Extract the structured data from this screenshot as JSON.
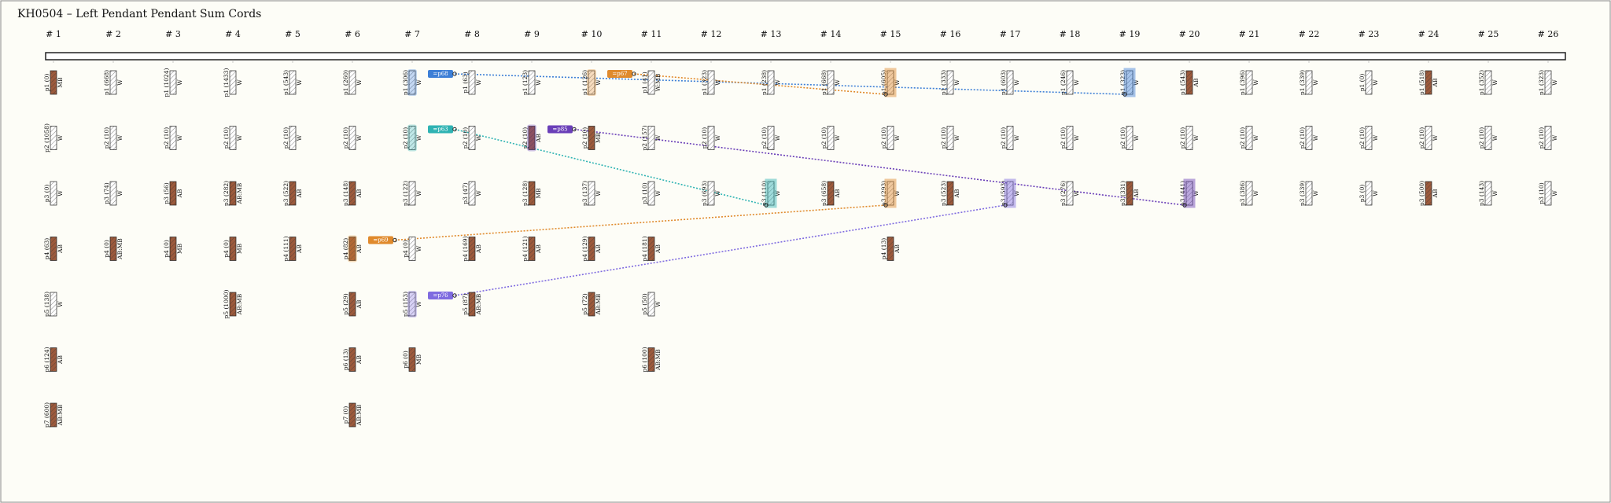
{
  "title": "KH0504 – Left Pendant Pendant Sum Cords",
  "groups": [
    {
      "label": "# 1",
      "cords": [
        {
          "l": "p1 (0)",
          "c": "MB",
          "f": "#9c5a3c"
        },
        {
          "l": "p2 (1058)",
          "c": "W",
          "f": "#ffffff"
        },
        {
          "l": "p3 (0)",
          "c": "W",
          "f": "#ffffff"
        },
        {
          "l": "p4 (63)",
          "c": "AB",
          "f": "#9c5a3c"
        },
        {
          "l": "p5 (138)",
          "c": "W",
          "f": "#ffffff"
        },
        {
          "l": "p6 (124)",
          "c": "AB",
          "f": "#9c5a3c"
        },
        {
          "l": "p7 (600)",
          "c": "AB:MB",
          "f": "#9c5a3c"
        }
      ]
    },
    {
      "label": "# 2",
      "cords": [
        {
          "l": "p1 (668)",
          "c": "W",
          "f": "#ffffff"
        },
        {
          "l": "p2 (10)",
          "c": "W",
          "f": "#ffffff"
        },
        {
          "l": "p3 (74)",
          "c": "W",
          "f": "#ffffff"
        },
        {
          "l": "p4 (0)",
          "c": "AB:MB",
          "f": "#9c5a3c"
        }
      ]
    },
    {
      "label": "# 3",
      "cords": [
        {
          "l": "p1 (1024)",
          "c": "W",
          "f": "#ffffff"
        },
        {
          "l": "p2 (10)",
          "c": "W",
          "f": "#ffffff"
        },
        {
          "l": "p3 (56)",
          "c": "AB",
          "f": "#9c5a3c"
        },
        {
          "l": "p4 (0)",
          "c": "MB",
          "f": "#9c5a3c"
        }
      ]
    },
    {
      "label": "# 4",
      "cords": [
        {
          "l": "p1 (1433)",
          "c": "W",
          "f": "#ffffff"
        },
        {
          "l": "p2 (10)",
          "c": "W",
          "f": "#ffffff"
        },
        {
          "l": "p3 (282)",
          "c": "AB:MB",
          "f": "#9c5a3c"
        },
        {
          "l": "p4 (0)",
          "c": "MB",
          "f": "#9c5a3c"
        },
        {
          "l": "p5 (1000)",
          "c": "AB:MB",
          "f": "#9c5a3c"
        }
      ]
    },
    {
      "label": "# 5",
      "cords": [
        {
          "l": "p1 (543)",
          "c": "W",
          "f": "#ffffff"
        },
        {
          "l": "p2 (10)",
          "c": "W",
          "f": "#ffffff"
        },
        {
          "l": "p3 (522)",
          "c": "AB",
          "f": "#9c5a3c"
        },
        {
          "l": "p4 (111)",
          "c": "AB",
          "f": "#9c5a3c"
        }
      ]
    },
    {
      "label": "# 6",
      "cords": [
        {
          "l": "p1 (260)",
          "c": "W",
          "f": "#ffffff"
        },
        {
          "l": "p2 (10)",
          "c": "W",
          "f": "#ffffff"
        },
        {
          "l": "p3 (148)",
          "c": "AB",
          "f": "#9c5a3c"
        },
        {
          "l": "p4 (82)",
          "c": "AB",
          "f": "#9c5a3c"
        },
        {
          "l": "p5 (29)",
          "c": "AB",
          "f": "#9c5a3c"
        },
        {
          "l": "p6 (13)",
          "c": "AB",
          "f": "#9c5a3c"
        },
        {
          "l": "p7 (0)",
          "c": "AB:MB",
          "f": "#9c5a3c"
        }
      ]
    },
    {
      "label": "# 7",
      "cords": [
        {
          "l": "p1 (306)",
          "c": "W",
          "f": "#ffffff"
        },
        {
          "l": "p2 (10)",
          "c": "W",
          "f": "#ffffff"
        },
        {
          "l": "p3 (122)",
          "c": "W",
          "f": "#ffffff"
        },
        {
          "l": "p4 (0)",
          "c": "W",
          "f": "#ffffff"
        },
        {
          "l": "p5 (153)",
          "c": "W",
          "f": "#ffffff"
        },
        {
          "l": "p6 (0)",
          "c": "MB",
          "f": "#9c5a3c"
        }
      ]
    },
    {
      "label": "# 8",
      "cords": [
        {
          "l": "p1 (63)",
          "c": "W",
          "f": "#ffffff"
        },
        {
          "l": "p2 (10)",
          "c": "W",
          "f": "#ffffff"
        },
        {
          "l": "p3 (47)",
          "c": "W",
          "f": "#ffffff"
        },
        {
          "l": "p4 (169)",
          "c": "AB",
          "f": "#9c5a3c"
        },
        {
          "l": "p5 (87)",
          "c": "AB:MB",
          "f": "#9c5a3c"
        }
      ]
    },
    {
      "label": "# 9",
      "cords": [
        {
          "l": "p1 (123)",
          "c": "W",
          "f": "#ffffff"
        },
        {
          "l": "p2 (10)",
          "c": "AB",
          "f": "#9c5a3c"
        },
        {
          "l": "p3 (128)",
          "c": "MB",
          "f": "#9c5a3c"
        },
        {
          "l": "p4 (121)",
          "c": "AB",
          "f": "#9c5a3c"
        }
      ]
    },
    {
      "label": "# 10",
      "cords": [
        {
          "l": "p1 (126)",
          "c": "W",
          "f": "#ffffff"
        },
        {
          "l": "p2 (10)",
          "c": "MB",
          "f": "#9c5a3c"
        },
        {
          "l": "p3 (137)",
          "c": "W",
          "f": "#ffffff"
        },
        {
          "l": "p4 (129)",
          "c": "AB",
          "f": "#9c5a3c"
        },
        {
          "l": "p5 (72)",
          "c": "AB:MB",
          "f": "#9c5a3c"
        }
      ]
    },
    {
      "label": "# 11",
      "cords": [
        {
          "l": "p1 (41)",
          "c": "W:MB",
          "f": "#ffffff"
        },
        {
          "l": "p2 (157)",
          "c": "W",
          "f": "#ffffff"
        },
        {
          "l": "p3 (10)",
          "c": "W",
          "f": "#ffffff"
        },
        {
          "l": "p4 (181)",
          "c": "AB",
          "f": "#9c5a3c"
        },
        {
          "l": "p5 (50)",
          "c": "W",
          "f": "#ffffff"
        },
        {
          "l": "p6 (100)",
          "c": "AB:MB",
          "f": "#9c5a3c"
        }
      ]
    },
    {
      "label": "# 12",
      "cords": [
        {
          "l": "p1 (323)",
          "c": "W",
          "f": "#ffffff"
        },
        {
          "l": "p2 (10)",
          "c": "W",
          "f": "#ffffff"
        },
        {
          "l": "p3 (693)",
          "c": "W",
          "f": "#ffffff"
        }
      ]
    },
    {
      "label": "# 13",
      "cords": [
        {
          "l": "p1 (238)",
          "c": "W",
          "f": "#ffffff"
        },
        {
          "l": "p2 (10)",
          "c": "W",
          "f": "#ffffff"
        },
        {
          "l": "p3 (110)",
          "c": "W",
          "f": "#ffffff"
        }
      ]
    },
    {
      "label": "# 14",
      "cords": [
        {
          "l": "p1 (668)",
          "c": "W",
          "f": "#ffffff"
        },
        {
          "l": "p2 (10)",
          "c": "W",
          "f": "#ffffff"
        },
        {
          "l": "p3 (658)",
          "c": "AB",
          "f": "#9c5a3c"
        }
      ]
    },
    {
      "label": "# 15",
      "cords": [
        {
          "l": "p1 (605)",
          "c": "W",
          "f": "#ffffff"
        },
        {
          "l": "p2 (10)",
          "c": "W",
          "f": "#ffffff"
        },
        {
          "l": "p3 (293)",
          "c": "W",
          "f": "#ffffff"
        },
        {
          "l": "p4 (13)",
          "c": "AB",
          "f": "#9c5a3c"
        }
      ]
    },
    {
      "label": "# 16",
      "cords": [
        {
          "l": "p1 (333)",
          "c": "W",
          "f": "#ffffff"
        },
        {
          "l": "p2 (10)",
          "c": "W",
          "f": "#ffffff"
        },
        {
          "l": "p3 (523)",
          "c": "AB",
          "f": "#9c5a3c"
        }
      ]
    },
    {
      "label": "# 17",
      "cords": [
        {
          "l": "p1 (603)",
          "c": "W",
          "f": "#ffffff"
        },
        {
          "l": "p2 (10)",
          "c": "W",
          "f": "#ffffff"
        },
        {
          "l": "p3 (593)",
          "c": "W",
          "f": "#ffffff"
        }
      ]
    },
    {
      "label": "# 18",
      "cords": [
        {
          "l": "p1 (246)",
          "c": "W",
          "f": "#ffffff"
        },
        {
          "l": "p2 (10)",
          "c": "W",
          "f": "#ffffff"
        },
        {
          "l": "p3 (276)",
          "c": "W",
          "f": "#ffffff"
        }
      ]
    },
    {
      "label": "# 19",
      "cords": [
        {
          "l": "p1 (323)",
          "c": "W",
          "f": "#ffffff"
        },
        {
          "l": "p2 (10)",
          "c": "W",
          "f": "#ffffff"
        },
        {
          "l": "p3 (331)",
          "c": "AB",
          "f": "#9c5a3c"
        }
      ]
    },
    {
      "label": "# 20",
      "cords": [
        {
          "l": "p1 (543)",
          "c": "AB",
          "f": "#9c5a3c"
        },
        {
          "l": "p2 (10)",
          "c": "W",
          "f": "#ffffff"
        },
        {
          "l": "p3 (441)",
          "c": "W",
          "f": "#ffffff"
        }
      ]
    },
    {
      "label": "# 21",
      "cords": [
        {
          "l": "p1 (396)",
          "c": "W",
          "f": "#ffffff"
        },
        {
          "l": "p2 (10)",
          "c": "W",
          "f": "#ffffff"
        },
        {
          "l": "p3 (386)",
          "c": "W",
          "f": "#ffffff"
        }
      ]
    },
    {
      "label": "# 22",
      "cords": [
        {
          "l": "p1 (339)",
          "c": "W",
          "f": "#ffffff"
        },
        {
          "l": "p2 (10)",
          "c": "W",
          "f": "#ffffff"
        },
        {
          "l": "p3 (339)",
          "c": "W",
          "f": "#ffffff"
        }
      ]
    },
    {
      "label": "# 23",
      "cords": [
        {
          "l": "p1 (0)",
          "c": "W",
          "f": "#ffffff"
        },
        {
          "l": "p2 (10)",
          "c": "W",
          "f": "#ffffff"
        },
        {
          "l": "p3 (0)",
          "c": "W",
          "f": "#ffffff"
        }
      ]
    },
    {
      "label": "# 24",
      "cords": [
        {
          "l": "p1 (518)",
          "c": "AB",
          "f": "#9c5a3c"
        },
        {
          "l": "p2 (10)",
          "c": "W",
          "f": "#ffffff"
        },
        {
          "l": "p3 (500)",
          "c": "AB",
          "f": "#9c5a3c"
        }
      ]
    },
    {
      "label": "# 25",
      "cords": [
        {
          "l": "p1 (352)",
          "c": "W",
          "f": "#ffffff"
        },
        {
          "l": "p2 (10)",
          "c": "W",
          "f": "#ffffff"
        },
        {
          "l": "p3 (143)",
          "c": "W",
          "f": "#ffffff"
        }
      ]
    },
    {
      "label": "# 26",
      "cords": [
        {
          "l": "p1 (323)",
          "c": "W",
          "f": "#ffffff"
        },
        {
          "l": "p2 (10)",
          "c": "W",
          "f": "#ffffff"
        },
        {
          "l": "p3 (10)",
          "c": "W",
          "f": "#ffffff"
        }
      ]
    }
  ],
  "sums": [
    {
      "label": "=p68",
      "color": "#3d7fd6",
      "from": [
        6,
        0
      ],
      "to": [
        18,
        0
      ]
    },
    {
      "label": "=p63",
      "color": "#2fb3b3",
      "from": [
        6,
        1
      ],
      "to": [
        12,
        2
      ]
    },
    {
      "label": "=p69",
      "color": "#e08a2c",
      "from": [
        5,
        3
      ],
      "to": [
        14,
        2
      ]
    },
    {
      "label": "=p76",
      "color": "#7f6be0",
      "from": [
        6,
        4
      ],
      "to": [
        16,
        2
      ]
    },
    {
      "label": "=p67",
      "color": "#e08a2c",
      "from": [
        9,
        0
      ],
      "to": [
        14,
        0
      ]
    },
    {
      "label": "=p85",
      "color": "#6a3fb8",
      "from": [
        8,
        1
      ],
      "to": [
        19,
        2
      ]
    }
  ]
}
